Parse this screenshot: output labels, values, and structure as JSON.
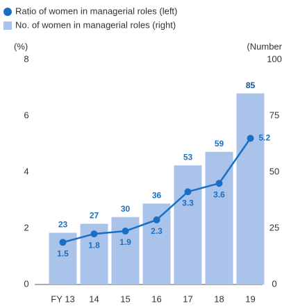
{
  "chart_data": {
    "type": "bar",
    "legend": "top-left",
    "ylabel": "(%)",
    "y2label": "(Number",
    "categories": [
      "FY 13",
      "14",
      "15",
      "16",
      "17",
      "18",
      "19"
    ],
    "ylim": [
      0,
      8
    ],
    "yticks": [
      0,
      2,
      4,
      6,
      8
    ],
    "y2lim": [
      0,
      100
    ],
    "y2ticks": [
      0,
      25,
      50,
      75,
      100
    ],
    "series": [
      {
        "name": "Ratio of women in managerial roles (left)",
        "type": "line",
        "color": "#1a6fc4",
        "values": [
          1.5,
          1.8,
          1.9,
          2.3,
          3.3,
          3.6,
          5.2
        ]
      },
      {
        "name": "No. of women in managerial roles (right)",
        "type": "bar",
        "axis": "y2",
        "color": "#a9c3ea",
        "values": [
          23,
          27,
          30,
          36,
          53,
          59,
          85
        ]
      }
    ]
  }
}
